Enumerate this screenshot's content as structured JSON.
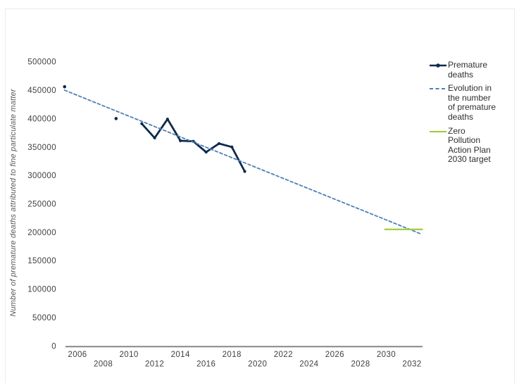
{
  "colors": {
    "navy": "#10294e",
    "trend_blue": "#4c80b8",
    "target_green": "#9acd32",
    "axis_line": "#7f7f7f",
    "tick_label": "#3f3f3f",
    "axis_title": "#595959",
    "legend_text": "#2e2e2e",
    "card_border": "#ebebeb"
  },
  "chart_data": {
    "type": "line",
    "title": "",
    "xlabel": "",
    "ylabel": "Number of premature deaths attributed to fine particulate matter",
    "ylim": [
      0,
      500000
    ],
    "xlim": [
      2005,
      2033
    ],
    "grid": false,
    "legend_position": "right",
    "y_ticks": [
      0,
      50000,
      100000,
      150000,
      200000,
      250000,
      300000,
      350000,
      400000,
      450000,
      500000
    ],
    "x_ticks_row1": [
      2006,
      2010,
      2014,
      2018,
      2022,
      2026,
      2030
    ],
    "x_ticks_row2": [
      2008,
      2012,
      2016,
      2020,
      2024,
      2028,
      2032
    ],
    "series": [
      {
        "id": "premature-deaths-isolated-points",
        "name": "Premature deaths",
        "type": "scatter",
        "color": "#10294e",
        "points": [
          [
            2005,
            456000
          ],
          [
            2009,
            400000
          ]
        ]
      },
      {
        "id": "premature-deaths-line",
        "name": "Premature deaths",
        "type": "line",
        "markers": true,
        "color": "#10294e",
        "points": [
          [
            2011,
            391000
          ],
          [
            2012,
            366000
          ],
          [
            2013,
            399000
          ],
          [
            2014,
            361000
          ],
          [
            2015,
            360000
          ],
          [
            2016,
            341000
          ],
          [
            2017,
            356000
          ],
          [
            2018,
            350000
          ],
          [
            2019,
            307000
          ]
        ]
      },
      {
        "id": "evolution-trend-line",
        "name": "Evolution in the number of premature deaths",
        "type": "line",
        "dashed": true,
        "color": "#4c80b8",
        "points": [
          [
            2005,
            450000
          ],
          [
            2032.7,
            197000
          ]
        ]
      },
      {
        "id": "zpap-2030-target-line",
        "name": "Zero Pollution Action Plan 2030 target",
        "type": "line",
        "color": "#9acd32",
        "points": [
          [
            2029.9,
            205000
          ],
          [
            2032.8,
            205000
          ]
        ]
      }
    ]
  },
  "legend": {
    "items": [
      {
        "id": "premature-deaths",
        "label": "Premature deaths",
        "lines": [
          "Premature",
          "deaths"
        ],
        "marker": "line-with-dot",
        "color": "#10294e"
      },
      {
        "id": "evolution-trend",
        "label": "Evolution in the number of premature deaths",
        "lines": [
          "Evolution in",
          "the number",
          "of premature",
          "deaths"
        ],
        "marker": "dashed-line",
        "color": "#4c80b8"
      },
      {
        "id": "zpap-2030-target",
        "label": "Zero Pollution Action Plan 2030 target",
        "lines": [
          "Zero",
          "Pollution",
          "Action Plan",
          "2030 target"
        ],
        "marker": "solid-line",
        "color": "#9acd32"
      }
    ]
  }
}
